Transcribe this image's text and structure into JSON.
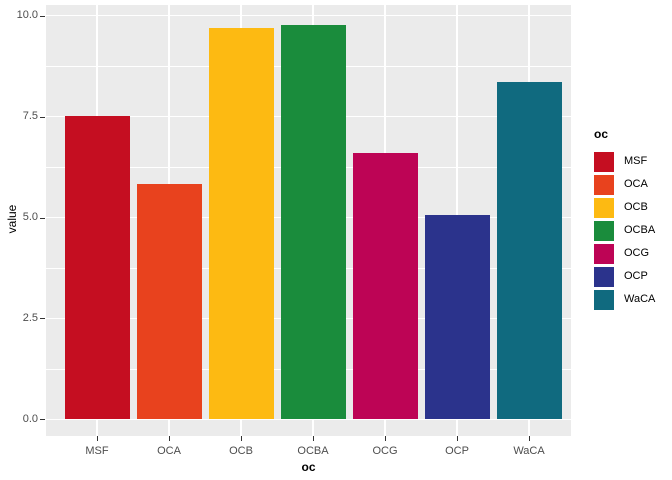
{
  "chart_data": {
    "type": "bar",
    "title": "",
    "xlabel": "oc",
    "ylabel": "value",
    "categories": [
      "MSF",
      "OCA",
      "OCB",
      "OCBA",
      "OCG",
      "OCP",
      "WaCA"
    ],
    "values": [
      7.52,
      5.83,
      9.69,
      9.76,
      6.61,
      5.06,
      8.36
    ],
    "colors": [
      "#C50E21",
      "#E8421E",
      "#FDBA12",
      "#1A8C3C",
      "#BD0455",
      "#2B338C",
      "#106A7F"
    ],
    "ylim": [
      0,
      10
    ],
    "y_major_ticks": [
      0,
      2.5,
      5,
      7.5,
      10
    ],
    "y_tick_labels": [
      "0.0",
      "2.5",
      "5.0",
      "7.5",
      "10.0"
    ],
    "y_minor_ticks": [
      1.25,
      3.75,
      6.25,
      8.75
    ],
    "grid": "on",
    "legend": {
      "title": "oc",
      "position": "right",
      "entries": [
        {
          "label": "MSF",
          "color": "#C50E21"
        },
        {
          "label": "OCA",
          "color": "#E8421E"
        },
        {
          "label": "OCB",
          "color": "#FDBA12"
        },
        {
          "label": "OCBA",
          "color": "#1A8C3C"
        },
        {
          "label": "OCG",
          "color": "#BD0455"
        },
        {
          "label": "OCP",
          "color": "#2B338C"
        },
        {
          "label": "WaCA",
          "color": "#106A7F"
        }
      ]
    },
    "style": {
      "panel_background": "#EBEBEB",
      "gridline_color": "#FFFFFF",
      "tick_label_color": "#4D4D4D",
      "tick_mark_color": "#333333",
      "axis_title_color": "#000000",
      "page_background": "#FFFFFF"
    }
  }
}
